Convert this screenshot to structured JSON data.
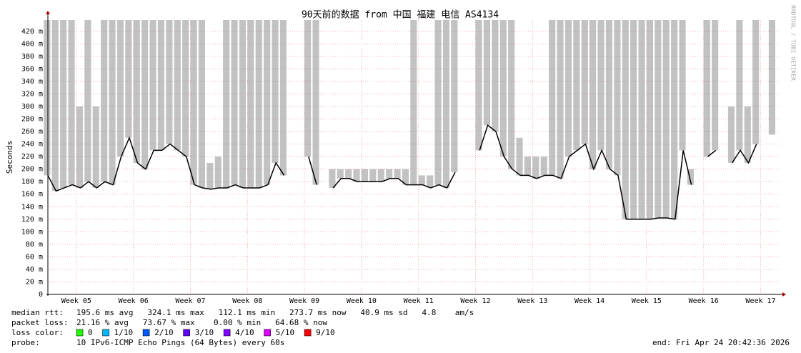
{
  "chart_data": {
    "type": "smokeping",
    "title": "90天前的数据 from 中国 福建 电信 AS4134",
    "y_label": "Seconds",
    "watermark": "RRDTOOL / TOBI OETIKER",
    "grid": true,
    "xlim": [
      0,
      90
    ],
    "xticks": [
      {
        "value": 3.5,
        "label": "Week 05"
      },
      {
        "value": 10.5,
        "label": "Week 06"
      },
      {
        "value": 17.5,
        "label": "Week 07"
      },
      {
        "value": 24.5,
        "label": "Week 08"
      },
      {
        "value": 31.5,
        "label": "Week 09"
      },
      {
        "value": 38.5,
        "label": "Week 10"
      },
      {
        "value": 45.5,
        "label": "Week 11"
      },
      {
        "value": 52.5,
        "label": "Week 12"
      },
      {
        "value": 59.5,
        "label": "Week 13"
      },
      {
        "value": 66.5,
        "label": "Week 14"
      },
      {
        "value": 73.5,
        "label": "Week 15"
      },
      {
        "value": 80.5,
        "label": "Week 16"
      },
      {
        "value": 87.5,
        "label": "Week 17"
      }
    ],
    "ylim": [
      0,
      0.438
    ],
    "yticks": [
      0,
      {
        "value": 0.02,
        "label": "20 m"
      },
      {
        "value": 0.04,
        "label": "40 m"
      },
      {
        "value": 0.06,
        "label": "60 m"
      },
      {
        "value": 0.08,
        "label": "80 m"
      },
      {
        "value": 0.1,
        "label": "100 m"
      },
      {
        "value": 0.12,
        "label": "120 m"
      },
      {
        "value": 0.14,
        "label": "140 m"
      },
      {
        "value": 0.16,
        "label": "160 m"
      },
      {
        "value": 0.18,
        "label": "180 m"
      },
      {
        "value": 0.2,
        "label": "200 m"
      },
      {
        "value": 0.22,
        "label": "220 m"
      },
      {
        "value": 0.24,
        "label": "240 m"
      },
      {
        "value": 0.26,
        "label": "260 m"
      },
      {
        "value": 0.28,
        "label": "280 m"
      },
      {
        "value": 0.3,
        "label": "300 m"
      },
      {
        "value": 0.32,
        "label": "320 m"
      },
      {
        "value": 0.34,
        "label": "340 m"
      },
      {
        "value": 0.36,
        "label": "360 m"
      },
      {
        "value": 0.38,
        "label": "380 m"
      },
      {
        "value": 0.4,
        "label": "400 m"
      },
      {
        "value": 0.42,
        "label": "420 m"
      }
    ],
    "x": [
      0,
      1,
      2,
      3,
      4,
      5,
      6,
      7,
      8,
      9,
      10,
      11,
      12,
      13,
      14,
      15,
      16,
      17,
      18,
      19,
      20,
      21,
      22,
      23,
      24,
      25,
      26,
      27,
      28,
      29,
      30,
      31,
      32,
      33,
      34,
      35,
      36,
      37,
      38,
      39,
      40,
      41,
      42,
      43,
      44,
      45,
      46,
      47,
      48,
      49,
      50,
      51,
      52,
      53,
      54,
      55,
      56,
      57,
      58,
      59,
      60,
      61,
      62,
      63,
      64,
      65,
      66,
      67,
      68,
      69,
      70,
      71,
      72,
      73,
      74,
      75,
      76,
      77,
      78,
      79,
      80,
      81,
      82,
      83,
      84,
      85,
      86,
      87,
      88,
      89
    ],
    "series": [
      {
        "color": "#000000",
        "values": [
          0.19,
          0.165,
          0.17,
          0.175,
          0.17,
          0.18,
          0.17,
          0.18,
          0.175,
          0.22,
          0.25,
          0.21,
          0.2,
          0.23,
          0.23,
          0.24,
          0.23,
          0.22,
          0.175,
          0.17,
          0.168,
          0.17,
          0.17,
          0.175,
          0.17,
          0.17,
          0.17,
          0.175,
          0.21,
          0.19,
          null,
          null,
          0.22,
          0.175,
          null,
          0.17,
          0.185,
          0.185,
          0.18,
          0.18,
          0.18,
          0.18,
          0.185,
          0.185,
          0.175,
          0.175,
          0.175,
          0.17,
          0.175,
          0.17,
          0.195,
          null,
          null,
          0.23,
          0.27,
          0.26,
          0.22,
          0.2,
          0.19,
          0.19,
          0.185,
          0.19,
          0.19,
          0.185,
          0.22,
          0.23,
          0.24,
          0.2,
          0.23,
          0.2,
          0.19,
          0.12,
          0.12,
          0.12,
          0.12,
          0.122,
          0.122,
          0.12,
          0.23,
          0.175,
          null,
          0.22,
          0.23,
          null,
          0.21,
          0.23,
          0.21,
          0.24,
          null,
          0.255
        ]
      }
    ],
    "smoke_max": [
      0.438,
      0.438,
      0.438,
      0.438,
      0.3,
      0.438,
      0.3,
      0.438,
      0.438,
      0.438,
      0.438,
      0.438,
      0.438,
      0.438,
      0.438,
      0.438,
      0.438,
      0.438,
      0.438,
      0.438,
      0.21,
      0.22,
      0.438,
      0.438,
      0.438,
      0.438,
      0.438,
      0.438,
      0.438,
      0.438,
      null,
      null,
      0.438,
      0.438,
      null,
      0.2,
      0.2,
      0.2,
      0.2,
      0.2,
      0.2,
      0.2,
      0.2,
      0.2,
      0.2,
      0.438,
      0.19,
      0.19,
      0.438,
      0.438,
      0.438,
      null,
      null,
      0.438,
      0.438,
      0.438,
      0.438,
      0.438,
      0.25,
      0.22,
      0.22,
      0.22,
      0.438,
      0.438,
      0.438,
      0.438,
      0.438,
      0.438,
      0.438,
      0.438,
      0.438,
      0.438,
      0.438,
      0.438,
      0.438,
      0.438,
      0.438,
      0.438,
      0.438,
      0.2,
      null,
      0.438,
      0.438,
      null,
      0.3,
      0.438,
      0.3,
      0.438,
      null,
      0.438
    ],
    "stats": [
      {
        "label": "median rtt:",
        "text": "195.6 ms avg   324.1 ms max   112.1 ms min   273.7 ms now   40.9 ms sd   4.8    am/s"
      },
      {
        "label": "packet loss:",
        "text": "21.16 % avg   73.67 % max    0.00 % min   64.68 % now"
      }
    ],
    "loss_label": "loss color:",
    "loss_colors": [
      {
        "label": "0",
        "color": "#26ff00"
      },
      {
        "label": "1/10",
        "color": "#00b8ff"
      },
      {
        "label": "2/10",
        "color": "#0059ff"
      },
      {
        "label": "3/10",
        "color": "#5e00ff"
      },
      {
        "label": "4/10",
        "color": "#7e00ff"
      },
      {
        "label": "5/10",
        "color": "#dd00ff"
      },
      {
        "label": "9/10",
        "color": "#ff0000"
      }
    ],
    "probe_label": "probe:",
    "probe": "10 IPv6-ICMP Echo Pings (64 Bytes) every 60s",
    "end": "end: Fri Apr 24 20:42:36 2026"
  }
}
